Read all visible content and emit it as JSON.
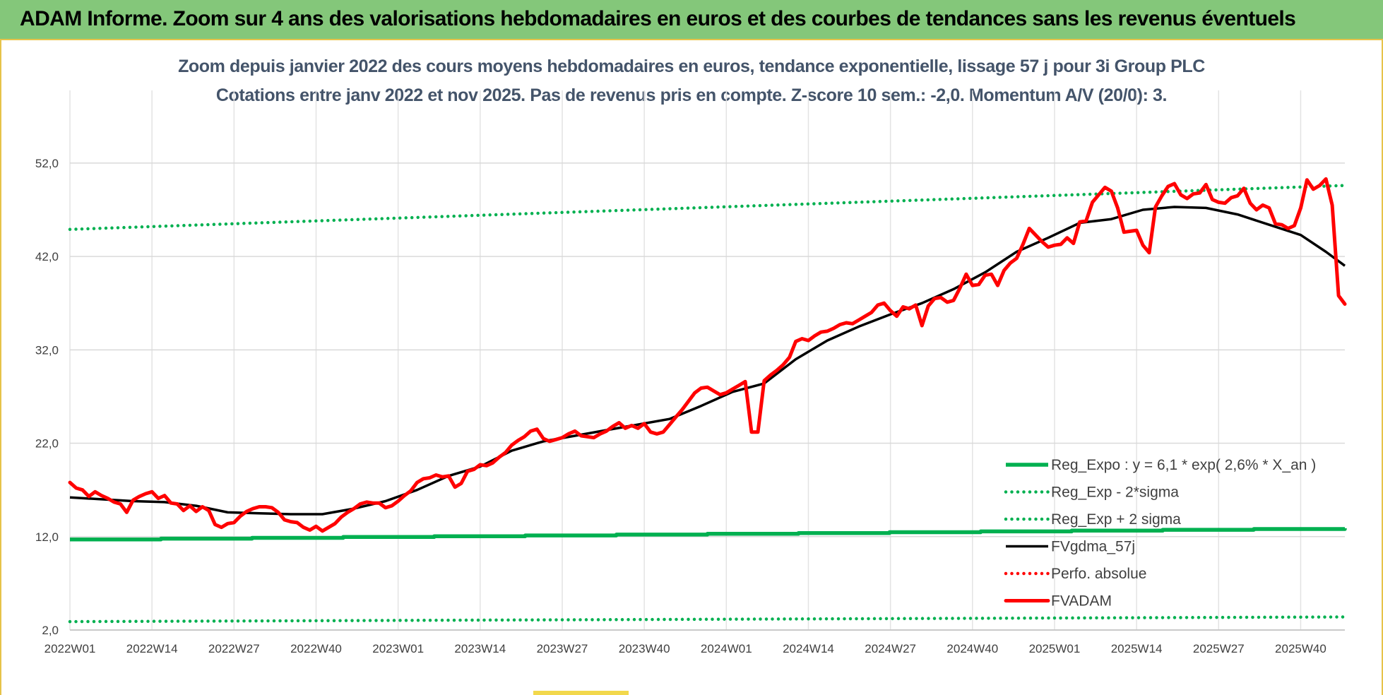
{
  "banner": {
    "title": "ADAM Informe. Zoom sur 4 ans des valorisations hebdomadaires en euros et des courbes de tendances sans les revenus éventuels"
  },
  "colors": {
    "banner_bg": "#84c77a",
    "regression": "#00b050",
    "smoothing": "#000000",
    "price": "#ff0000",
    "title_text": "#44546a"
  },
  "chart_data": {
    "type": "line",
    "title": "Zoom depuis janvier 2022 des cours moyens hebdomadaires en euros, tendance exponentielle, lissage 57 j pour 3i Group PLC",
    "subtitle": "Cotations entre janv 2022 et nov 2025. Pas de revenus pris en compte. Z-score 10 sem.: -2,0. Momentum A/V (20/0): 3.",
    "xlabel": "",
    "ylabel": "",
    "ylim": [
      2,
      56
    ],
    "yticks": [
      2,
      12,
      22,
      32,
      42,
      52
    ],
    "ytick_labels": [
      "2,0",
      "12,0",
      "22,0",
      "32,0",
      "42,0",
      "52,0"
    ],
    "x_range": [
      0,
      202
    ],
    "xtick_positions": [
      0,
      13,
      26,
      39,
      52,
      65,
      78,
      91,
      104,
      117,
      130,
      143,
      156,
      169,
      182,
      195
    ],
    "xtick_labels": [
      "2022W01",
      "2022W14",
      "2022W27",
      "2022W40",
      "2023W01",
      "2023W14",
      "2023W27",
      "2023W40",
      "2024W01",
      "2024W14",
      "2024W27",
      "2024W40",
      "2025W01",
      "2025W14",
      "2025W27",
      "2025W40"
    ],
    "grid": true,
    "legend_position": "bottom-right",
    "series": [
      {
        "name": "Reg_Expo : y = 6,1 * exp( 2,6% *  X_an )",
        "style": "solid",
        "color": "#00b050",
        "points": [
          [
            0,
            11.7
          ],
          [
            202,
            12.9
          ]
        ]
      },
      {
        "name": "Reg_Exp - 2*sigma",
        "style": "dotted",
        "color": "#00b050",
        "points": [
          [
            0,
            2.9
          ],
          [
            202,
            3.4
          ]
        ]
      },
      {
        "name": "Reg_Exp + 2 sigma",
        "style": "dotted",
        "color": "#00b050",
        "points": [
          [
            0,
            44.9
          ],
          [
            202,
            49.6
          ]
        ]
      },
      {
        "name": "FVgdma_57j",
        "style": "solid",
        "color": "#000000",
        "points": [
          [
            0,
            16.2
          ],
          [
            5,
            16.0
          ],
          [
            10,
            15.8
          ],
          [
            15,
            15.7
          ],
          [
            20,
            15.3
          ],
          [
            25,
            14.6
          ],
          [
            30,
            14.5
          ],
          [
            35,
            14.4
          ],
          [
            40,
            14.4
          ],
          [
            45,
            15.0
          ],
          [
            50,
            15.8
          ],
          [
            55,
            17.0
          ],
          [
            60,
            18.5
          ],
          [
            65,
            19.5
          ],
          [
            70,
            21.2
          ],
          [
            75,
            22.2
          ],
          [
            80,
            22.8
          ],
          [
            85,
            23.4
          ],
          [
            90,
            24.0
          ],
          [
            95,
            24.6
          ],
          [
            100,
            26.0
          ],
          [
            105,
            27.5
          ],
          [
            110,
            28.4
          ],
          [
            115,
            31.0
          ],
          [
            120,
            33.0
          ],
          [
            125,
            34.5
          ],
          [
            130,
            35.8
          ],
          [
            135,
            37.0
          ],
          [
            140,
            38.5
          ],
          [
            145,
            40.3
          ],
          [
            150,
            42.5
          ],
          [
            155,
            44.0
          ],
          [
            160,
            45.6
          ],
          [
            165,
            46.0
          ],
          [
            170,
            47.0
          ],
          [
            175,
            47.3
          ],
          [
            180,
            47.2
          ],
          [
            185,
            46.5
          ],
          [
            190,
            45.4
          ],
          [
            195,
            44.3
          ],
          [
            199,
            42.5
          ],
          [
            202,
            41.0
          ]
        ]
      },
      {
        "name": "Perfo. absolue",
        "style": "dotted",
        "color": "#ff0000",
        "points": []
      },
      {
        "name": "FVADAM",
        "style": "solid",
        "color": "#ff0000",
        "points": [
          [
            0,
            17.8
          ],
          [
            1,
            17.2
          ],
          [
            2,
            17.0
          ],
          [
            3,
            16.3
          ],
          [
            4,
            16.8
          ],
          [
            5,
            16.4
          ],
          [
            6,
            16.1
          ],
          [
            7,
            15.7
          ],
          [
            8,
            15.5
          ],
          [
            9,
            14.6
          ],
          [
            10,
            15.9
          ],
          [
            11,
            16.3
          ],
          [
            12,
            16.6
          ],
          [
            13,
            16.8
          ],
          [
            14,
            16.1
          ],
          [
            15,
            16.4
          ],
          [
            16,
            15.6
          ],
          [
            17,
            15.5
          ],
          [
            18,
            14.8
          ],
          [
            19,
            15.3
          ],
          [
            20,
            14.7
          ],
          [
            21,
            15.2
          ],
          [
            22,
            14.8
          ],
          [
            23,
            13.3
          ],
          [
            24,
            13.0
          ],
          [
            25,
            13.4
          ],
          [
            26,
            13.5
          ],
          [
            27,
            14.2
          ],
          [
            28,
            14.7
          ],
          [
            29,
            15.0
          ],
          [
            30,
            15.2
          ],
          [
            31,
            15.2
          ],
          [
            32,
            15.1
          ],
          [
            33,
            14.6
          ],
          [
            34,
            13.8
          ],
          [
            35,
            13.6
          ],
          [
            36,
            13.5
          ],
          [
            37,
            13.0
          ],
          [
            38,
            12.7
          ],
          [
            39,
            13.1
          ],
          [
            40,
            12.6
          ],
          [
            41,
            13.0
          ],
          [
            42,
            13.4
          ],
          [
            43,
            14.1
          ],
          [
            44,
            14.6
          ],
          [
            45,
            15.0
          ],
          [
            46,
            15.5
          ],
          [
            47,
            15.7
          ],
          [
            48,
            15.6
          ],
          [
            49,
            15.6
          ],
          [
            50,
            15.1
          ],
          [
            51,
            15.3
          ],
          [
            52,
            15.8
          ],
          [
            53,
            16.4
          ],
          [
            54,
            16.9
          ],
          [
            55,
            17.8
          ],
          [
            56,
            18.2
          ],
          [
            57,
            18.3
          ],
          [
            58,
            18.6
          ],
          [
            59,
            18.4
          ],
          [
            60,
            18.5
          ],
          [
            61,
            17.3
          ],
          [
            62,
            17.7
          ],
          [
            63,
            19.0
          ],
          [
            64,
            19.2
          ],
          [
            65,
            19.7
          ],
          [
            66,
            19.6
          ],
          [
            67,
            19.9
          ],
          [
            68,
            20.5
          ],
          [
            69,
            21.0
          ],
          [
            70,
            21.8
          ],
          [
            71,
            22.3
          ],
          [
            72,
            22.7
          ],
          [
            73,
            23.3
          ],
          [
            74,
            23.5
          ],
          [
            75,
            22.5
          ],
          [
            76,
            22.2
          ],
          [
            77,
            22.4
          ],
          [
            78,
            22.6
          ],
          [
            79,
            23.0
          ],
          [
            80,
            23.3
          ],
          [
            81,
            22.8
          ],
          [
            82,
            22.7
          ],
          [
            83,
            22.6
          ],
          [
            84,
            23.0
          ],
          [
            85,
            23.3
          ],
          [
            86,
            23.8
          ],
          [
            87,
            24.2
          ],
          [
            88,
            23.6
          ],
          [
            89,
            23.9
          ],
          [
            90,
            23.6
          ],
          [
            91,
            24.1
          ],
          [
            92,
            23.2
          ],
          [
            93,
            23.0
          ],
          [
            94,
            23.2
          ],
          [
            95,
            24.0
          ],
          [
            96,
            24.8
          ],
          [
            97,
            25.6
          ],
          [
            98,
            26.5
          ],
          [
            99,
            27.4
          ],
          [
            100,
            27.9
          ],
          [
            101,
            28.0
          ],
          [
            102,
            27.6
          ],
          [
            103,
            27.2
          ],
          [
            104,
            27.4
          ],
          [
            105,
            27.8
          ],
          [
            106,
            28.2
          ],
          [
            107,
            28.6
          ],
          [
            108,
            23.2
          ],
          [
            109,
            23.2
          ],
          [
            110,
            28.7
          ],
          [
            111,
            29.3
          ],
          [
            112,
            29.8
          ],
          [
            113,
            30.4
          ],
          [
            114,
            31.2
          ],
          [
            115,
            32.9
          ],
          [
            116,
            33.2
          ],
          [
            117,
            33.0
          ],
          [
            118,
            33.5
          ],
          [
            119,
            33.9
          ],
          [
            120,
            34.0
          ],
          [
            121,
            34.3
          ],
          [
            122,
            34.7
          ],
          [
            123,
            34.9
          ],
          [
            124,
            34.8
          ],
          [
            125,
            35.2
          ],
          [
            126,
            35.6
          ],
          [
            127,
            36.0
          ],
          [
            128,
            36.8
          ],
          [
            129,
            37.0
          ],
          [
            130,
            36.2
          ],
          [
            131,
            35.6
          ],
          [
            132,
            36.6
          ],
          [
            133,
            36.4
          ],
          [
            134,
            36.8
          ],
          [
            135,
            34.6
          ],
          [
            136,
            36.7
          ],
          [
            137,
            37.5
          ],
          [
            138,
            37.6
          ],
          [
            139,
            37.1
          ],
          [
            140,
            37.3
          ],
          [
            141,
            38.6
          ],
          [
            142,
            40.1
          ],
          [
            143,
            38.9
          ],
          [
            144,
            39.0
          ],
          [
            145,
            40.0
          ],
          [
            146,
            40.1
          ],
          [
            147,
            38.9
          ],
          [
            148,
            40.5
          ],
          [
            149,
            41.3
          ],
          [
            150,
            41.8
          ],
          [
            151,
            43.3
          ],
          [
            152,
            45.0
          ],
          [
            153,
            44.3
          ],
          [
            154,
            43.6
          ],
          [
            155,
            43.0
          ],
          [
            156,
            43.2
          ],
          [
            157,
            43.3
          ],
          [
            158,
            44.0
          ],
          [
            159,
            43.4
          ],
          [
            160,
            45.7
          ],
          [
            161,
            45.8
          ],
          [
            162,
            47.8
          ],
          [
            163,
            48.6
          ],
          [
            164,
            49.4
          ],
          [
            165,
            49.0
          ],
          [
            166,
            47.2
          ],
          [
            167,
            44.6
          ],
          [
            168,
            44.7
          ],
          [
            169,
            44.8
          ],
          [
            170,
            43.2
          ],
          [
            171,
            42.4
          ],
          [
            172,
            47.3
          ],
          [
            173,
            48.5
          ],
          [
            174,
            49.5
          ],
          [
            175,
            49.8
          ],
          [
            176,
            48.6
          ],
          [
            177,
            48.2
          ],
          [
            178,
            48.7
          ],
          [
            179,
            48.8
          ],
          [
            180,
            49.7
          ],
          [
            181,
            48.1
          ],
          [
            182,
            47.8
          ],
          [
            183,
            47.7
          ],
          [
            184,
            48.3
          ],
          [
            185,
            48.5
          ],
          [
            186,
            49.3
          ],
          [
            187,
            47.7
          ],
          [
            188,
            47.0
          ],
          [
            189,
            47.5
          ],
          [
            190,
            47.2
          ],
          [
            191,
            45.5
          ],
          [
            192,
            45.4
          ],
          [
            193,
            45.0
          ],
          [
            194,
            45.3
          ],
          [
            195,
            47.2
          ],
          [
            196,
            50.2
          ],
          [
            197,
            49.2
          ],
          [
            198,
            49.6
          ],
          [
            199,
            50.3
          ],
          [
            200,
            47.5
          ],
          [
            201,
            37.8
          ],
          [
            202,
            36.9
          ]
        ]
      }
    ]
  }
}
